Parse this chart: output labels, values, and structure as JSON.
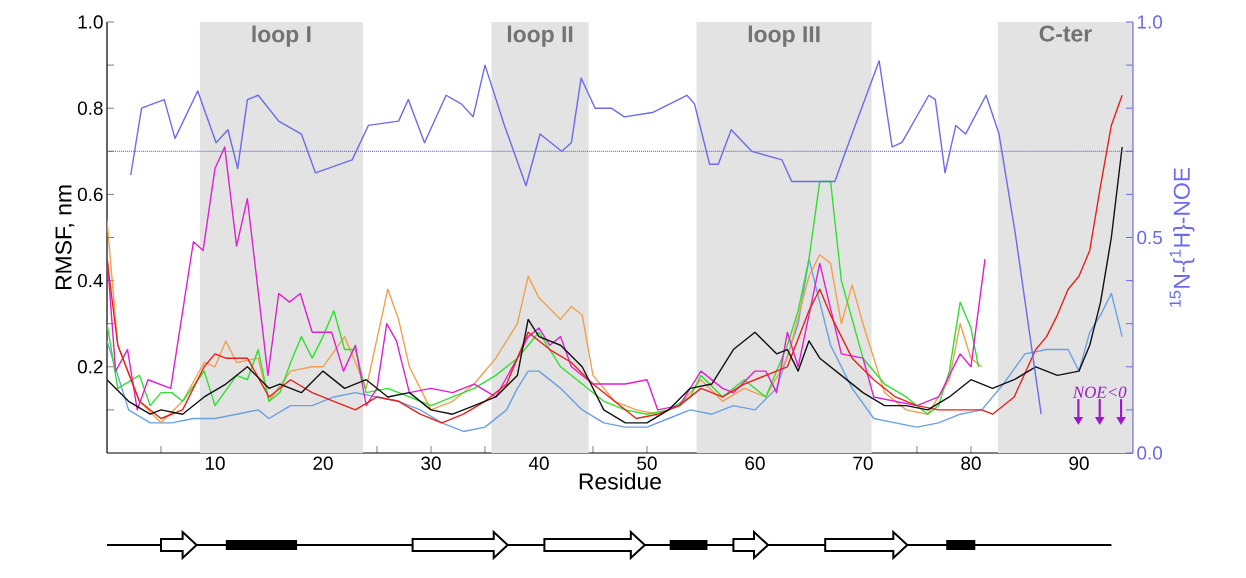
{
  "chart_data": {
    "type": "line",
    "xlabel": "Residue",
    "ylabel": "RMSF, nm",
    "y2label": "$^{15}$N-{$^{1}$H}-NOE",
    "xlim": [
      0,
      95
    ],
    "ylim": [
      0,
      1.0
    ],
    "y2lim": [
      0,
      1.0
    ],
    "xticks": [
      {
        "value": 5,
        "label": null
      },
      10,
      {
        "value": 15,
        "label": null
      },
      20,
      {
        "value": 25,
        "label": null
      },
      30,
      {
        "value": 35,
        "label": null
      },
      40,
      {
        "value": 45,
        "label": null
      },
      50,
      {
        "value": 55,
        "label": null
      },
      60,
      {
        "value": 65,
        "label": null
      },
      70,
      {
        "value": 75,
        "label": null
      },
      80,
      {
        "value": 85,
        "label": null
      },
      90
    ],
    "yticks": [
      {
        "value": 0.1,
        "label": null
      },
      0.2,
      {
        "value": 0.3,
        "label": null
      },
      0.4,
      {
        "value": 0.5,
        "label": null
      },
      0.6,
      {
        "value": 0.7,
        "label": null
      },
      0.8,
      {
        "value": 0.9,
        "label": null
      },
      {
        "value": 1.0,
        "label": "1.0"
      }
    ],
    "y2ticks": [
      {
        "value": 0.0,
        "label": "0.0"
      },
      {
        "value": 0.1,
        "label": null
      },
      {
        "value": 0.2,
        "label": null
      },
      {
        "value": 0.3,
        "label": null
      },
      {
        "value": 0.4,
        "label": null
      },
      0.5,
      {
        "value": 0.6,
        "label": null
      },
      {
        "value": 0.7,
        "label": null
      },
      {
        "value": 0.8,
        "label": null
      },
      {
        "value": 0.9,
        "label": null
      },
      {
        "value": 1.0,
        "label": "1.0"
      }
    ],
    "grid": false,
    "marker": "none",
    "line_style": "solid",
    "bands": [
      {
        "axis": "x",
        "from": 8.6,
        "to": 23.7,
        "label": "loop I",
        "color": "#e3e3e3"
      },
      {
        "axis": "x",
        "from": 35.6,
        "to": 44.6,
        "label": "loop II",
        "color": "#e3e3e3"
      },
      {
        "axis": "x",
        "from": 54.6,
        "to": 70.8,
        "label": "loop III",
        "color": "#e3e3e3"
      },
      {
        "axis": "x",
        "from": 82.5,
        "to": 95,
        "label": "C-ter",
        "color": "#e3e3e3"
      }
    ],
    "ref_lines": [
      {
        "axis": "y2",
        "value": 0.7,
        "color": "#5050d0",
        "line_style": "dotted"
      }
    ],
    "annotations": [
      "NOE<0"
    ],
    "series": [
      {
        "color": "#6aa0e6",
        "x": [
          0,
          2,
          4,
          6,
          8,
          10,
          12,
          14,
          15,
          17,
          19,
          21,
          23,
          25,
          27,
          29,
          31,
          33,
          35,
          37,
          38,
          39,
          40,
          42,
          44,
          46,
          48,
          50,
          52,
          54,
          56,
          58,
          60,
          62,
          64,
          65,
          66,
          67,
          69,
          71,
          73,
          75,
          77,
          79,
          81,
          83,
          85,
          87,
          89,
          90,
          91,
          92,
          93,
          94
        ],
        "values": [
          0.26,
          0.1,
          0.07,
          0.07,
          0.08,
          0.08,
          0.09,
          0.1,
          0.08,
          0.11,
          0.11,
          0.13,
          0.14,
          0.13,
          0.12,
          0.1,
          0.07,
          0.05,
          0.06,
          0.1,
          0.15,
          0.19,
          0.19,
          0.15,
          0.1,
          0.07,
          0.06,
          0.06,
          0.08,
          0.1,
          0.09,
          0.11,
          0.1,
          0.15,
          0.3,
          0.45,
          0.35,
          0.25,
          0.15,
          0.08,
          0.07,
          0.06,
          0.07,
          0.09,
          0.1,
          0.16,
          0.23,
          0.24,
          0.24,
          0.19,
          0.28,
          0.32,
          0.37,
          0.27
        ]
      },
      {
        "color": "#f0a050",
        "x": [
          0,
          1,
          3,
          5,
          7,
          9,
          10,
          11,
          12,
          14,
          15,
          17,
          19,
          20,
          22,
          24,
          26,
          27,
          28,
          30,
          32,
          34,
          36,
          38,
          39,
          40,
          42,
          43,
          44,
          45,
          47,
          49,
          51,
          53,
          55,
          57,
          59,
          61,
          63,
          65,
          66,
          67,
          68,
          69,
          70,
          72,
          74,
          76,
          78,
          79,
          80,
          81
        ],
        "values": [
          0.54,
          0.25,
          0.12,
          0.07,
          0.12,
          0.21,
          0.2,
          0.26,
          0.21,
          0.22,
          0.12,
          0.19,
          0.2,
          0.2,
          0.27,
          0.15,
          0.38,
          0.31,
          0.2,
          0.1,
          0.12,
          0.16,
          0.22,
          0.3,
          0.41,
          0.36,
          0.31,
          0.34,
          0.32,
          0.18,
          0.12,
          0.1,
          0.09,
          0.11,
          0.17,
          0.12,
          0.15,
          0.13,
          0.22,
          0.41,
          0.46,
          0.44,
          0.3,
          0.39,
          0.3,
          0.14,
          0.1,
          0.09,
          0.17,
          0.3,
          0.22,
          0.2
        ]
      },
      {
        "color": "#30e030",
        "x": [
          0,
          1,
          3,
          4,
          5,
          6,
          7,
          9,
          10,
          12,
          13,
          14,
          15,
          16,
          17,
          18,
          19,
          20,
          21,
          22,
          23,
          24,
          26,
          28,
          30,
          32,
          34,
          36,
          38,
          40,
          42,
          44,
          46,
          48,
          50,
          52,
          54,
          55,
          57,
          59,
          61,
          63,
          64,
          65,
          66,
          67,
          68,
          70,
          72,
          74,
          76,
          77,
          78,
          79,
          80,
          80.7
        ],
        "values": [
          0.3,
          0.15,
          0.18,
          0.11,
          0.14,
          0.14,
          0.12,
          0.19,
          0.11,
          0.18,
          0.17,
          0.24,
          0.12,
          0.14,
          0.21,
          0.27,
          0.22,
          0.27,
          0.33,
          0.24,
          0.24,
          0.14,
          0.15,
          0.13,
          0.11,
          0.13,
          0.15,
          0.18,
          0.22,
          0.28,
          0.2,
          0.16,
          0.12,
          0.1,
          0.09,
          0.1,
          0.13,
          0.18,
          0.13,
          0.17,
          0.13,
          0.25,
          0.33,
          0.45,
          0.63,
          0.63,
          0.4,
          0.22,
          0.16,
          0.13,
          0.09,
          0.11,
          0.19,
          0.35,
          0.29,
          0.2
        ]
      },
      {
        "color": "#e020d0",
        "x": [
          0,
          0.8,
          1.9,
          2.8,
          3.8,
          5.9,
          8,
          8.9,
          10,
          10.9,
          12,
          13,
          14.9,
          15.9,
          16.9,
          17.9,
          19,
          20.8,
          21.9,
          23,
          24,
          25,
          25.9,
          26.8,
          28,
          30,
          32,
          34,
          36,
          38,
          39,
          40,
          41,
          42,
          43,
          45,
          48,
          50,
          51,
          53,
          55,
          57,
          58,
          60,
          61,
          62,
          63,
          64,
          66,
          68,
          70,
          71,
          75,
          77,
          79,
          80,
          81.3
        ],
        "values": [
          0.46,
          0.19,
          0.24,
          0.1,
          0.17,
          0.15,
          0.49,
          0.47,
          0.66,
          0.71,
          0.48,
          0.59,
          0.18,
          0.37,
          0.35,
          0.37,
          0.28,
          0.28,
          0.19,
          0.25,
          0.11,
          0.15,
          0.3,
          0.26,
          0.14,
          0.15,
          0.14,
          0.16,
          0.13,
          0.22,
          0.27,
          0.29,
          0.25,
          0.27,
          0.2,
          0.16,
          0.16,
          0.17,
          0.1,
          0.11,
          0.19,
          0.15,
          0.14,
          0.19,
          0.19,
          0.14,
          0.28,
          0.2,
          0.44,
          0.23,
          0.22,
          0.13,
          0.11,
          0.13,
          0.23,
          0.2,
          0.45
        ]
      },
      {
        "color": "#e8221a",
        "x": [
          0,
          1,
          3,
          5,
          7,
          9,
          10,
          11,
          13,
          15,
          17,
          19,
          21,
          23,
          25,
          27,
          29,
          31,
          33,
          35,
          37,
          39,
          41,
          43,
          45,
          47,
          49,
          51,
          53,
          55,
          57,
          59,
          61,
          63,
          65,
          66,
          67,
          69,
          71,
          73,
          75,
          77,
          79,
          81,
          82,
          84,
          86,
          87,
          88,
          89,
          90,
          91,
          92,
          93,
          94
        ],
        "values": [
          0.45,
          0.25,
          0.12,
          0.08,
          0.1,
          0.2,
          0.23,
          0.22,
          0.22,
          0.13,
          0.17,
          0.14,
          0.12,
          0.1,
          0.13,
          0.12,
          0.09,
          0.07,
          0.09,
          0.12,
          0.16,
          0.28,
          0.24,
          0.21,
          0.16,
          0.12,
          0.08,
          0.09,
          0.11,
          0.15,
          0.13,
          0.16,
          0.18,
          0.2,
          0.33,
          0.38,
          0.32,
          0.22,
          0.17,
          0.13,
          0.11,
          0.1,
          0.1,
          0.1,
          0.09,
          0.13,
          0.24,
          0.27,
          0.32,
          0.38,
          0.41,
          0.47,
          0.62,
          0.76,
          0.83
        ]
      },
      {
        "color": "#111111",
        "x": [
          0,
          2,
          4,
          5,
          7,
          9,
          11,
          13,
          15,
          16,
          18,
          20,
          22,
          24,
          26,
          28,
          30,
          32,
          34,
          36,
          38,
          39,
          40,
          42,
          44,
          46,
          48,
          50,
          52,
          54,
          56,
          58,
          60,
          62,
          63,
          64,
          65,
          66,
          68,
          70,
          72,
          74,
          76,
          78,
          80,
          82,
          84,
          86,
          88,
          90,
          91,
          92,
          93,
          94
        ],
        "values": [
          0.17,
          0.12,
          0.09,
          0.1,
          0.09,
          0.13,
          0.16,
          0.2,
          0.15,
          0.16,
          0.14,
          0.19,
          0.15,
          0.17,
          0.13,
          0.14,
          0.1,
          0.09,
          0.11,
          0.13,
          0.18,
          0.31,
          0.27,
          0.25,
          0.2,
          0.1,
          0.07,
          0.07,
          0.1,
          0.15,
          0.16,
          0.24,
          0.28,
          0.23,
          0.24,
          0.19,
          0.26,
          0.22,
          0.18,
          0.14,
          0.11,
          0.11,
          0.1,
          0.13,
          0.17,
          0.15,
          0.17,
          0.2,
          0.18,
          0.19,
          0.25,
          0.35,
          0.5,
          0.71
        ]
      },
      {
        "color": "#6b6bea",
        "axis": "y2",
        "x": [
          2.2,
          3.2,
          5.3,
          6.3,
          8.4,
          10.1,
          11.2,
          12.1,
          13,
          14,
          15.9,
          18,
          19.3,
          22.7,
          24.2,
          27,
          27.9,
          29.4,
          31.4,
          32.8,
          33.9,
          35,
          36.8,
          38.8,
          40.1,
          42.1,
          43,
          43.9,
          45.2,
          46.7,
          47.9,
          50.5,
          53.7,
          54.4,
          55.8,
          56.6,
          57.8,
          59.7,
          62.5,
          63.4,
          65.9,
          67.4,
          68.4,
          71.5,
          72.7,
          73.6,
          76.1,
          76.7,
          77.6,
          78.6,
          79.5,
          81.4,
          82.6,
          84.1,
          86.5
        ],
        "values": [
          0.645,
          0.8,
          0.82,
          0.73,
          0.84,
          0.72,
          0.75,
          0.66,
          0.82,
          0.83,
          0.77,
          0.74,
          0.65,
          0.68,
          0.76,
          0.77,
          0.82,
          0.72,
          0.83,
          0.81,
          0.78,
          0.9,
          0.76,
          0.62,
          0.74,
          0.7,
          0.72,
          0.87,
          0.8,
          0.8,
          0.78,
          0.79,
          0.83,
          0.81,
          0.67,
          0.67,
          0.75,
          0.7,
          0.68,
          0.63,
          0.63,
          0.63,
          0.7,
          0.91,
          0.71,
          0.72,
          0.83,
          0.82,
          0.65,
          0.76,
          0.74,
          0.83,
          0.74,
          0.51,
          0.09
        ]
      }
    ]
  }
}
